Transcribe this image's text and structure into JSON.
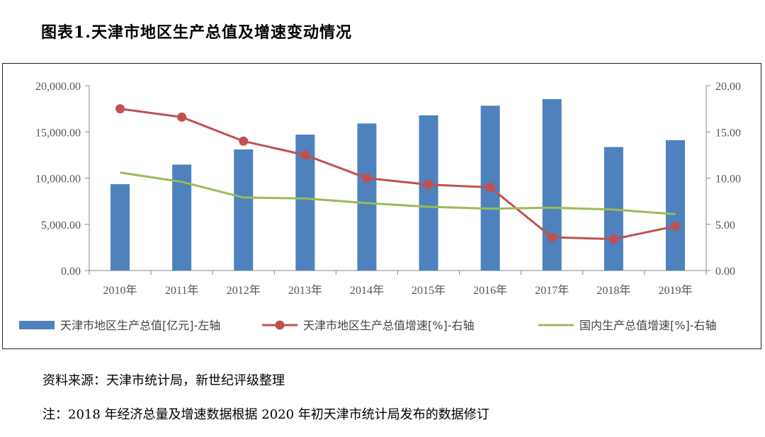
{
  "title": "图表1.天津市地区生产总值及增速变动情况",
  "source_note": "资料来源：天津市统计局，新世纪评级整理",
  "footnote": "注：2018 年经济总量及增速数据根据 2020 年初天津市统计局发布的数据修订",
  "chart_data": {
    "type": "bar",
    "title": "",
    "categories": [
      "2010年",
      "2011年",
      "2012年",
      "2013年",
      "2014年",
      "2015年",
      "2016年",
      "2017年",
      "2018年",
      "2019年"
    ],
    "left_axis": {
      "min": 0,
      "max": 20000,
      "step": 5000,
      "tick_labels": [
        "0.00",
        "5,000.00",
        "10,000.00",
        "15,000.00",
        "20,000.00"
      ]
    },
    "right_axis": {
      "min": 0,
      "max": 20,
      "step": 5,
      "tick_labels": [
        "0.00",
        "5.00",
        "10.00",
        "15.00",
        "20.00"
      ]
    },
    "series": [
      {
        "name": "天津市地区生产总值[亿元]-左轴",
        "type": "bar",
        "axis": "left",
        "color": "#4f81bd",
        "values": [
          9344,
          11461,
          13106,
          14703,
          15911,
          16794,
          17838,
          18549,
          13363,
          14104
        ]
      },
      {
        "name": "天津市地区生产总值增速[%]-右轴",
        "type": "line",
        "axis": "right",
        "color": "#c0504d",
        "markers": true,
        "values": [
          17.5,
          16.6,
          14.0,
          12.5,
          10.0,
          9.3,
          9.0,
          3.6,
          3.4,
          4.8
        ]
      },
      {
        "name": "国内生产总值增速[%]-右轴",
        "type": "line",
        "axis": "right",
        "color": "#9bbb59",
        "markers": false,
        "values": [
          10.6,
          9.6,
          7.9,
          7.8,
          7.3,
          6.9,
          6.7,
          6.8,
          6.6,
          6.1
        ]
      }
    ],
    "legend_position": "bottom",
    "grid": false
  }
}
